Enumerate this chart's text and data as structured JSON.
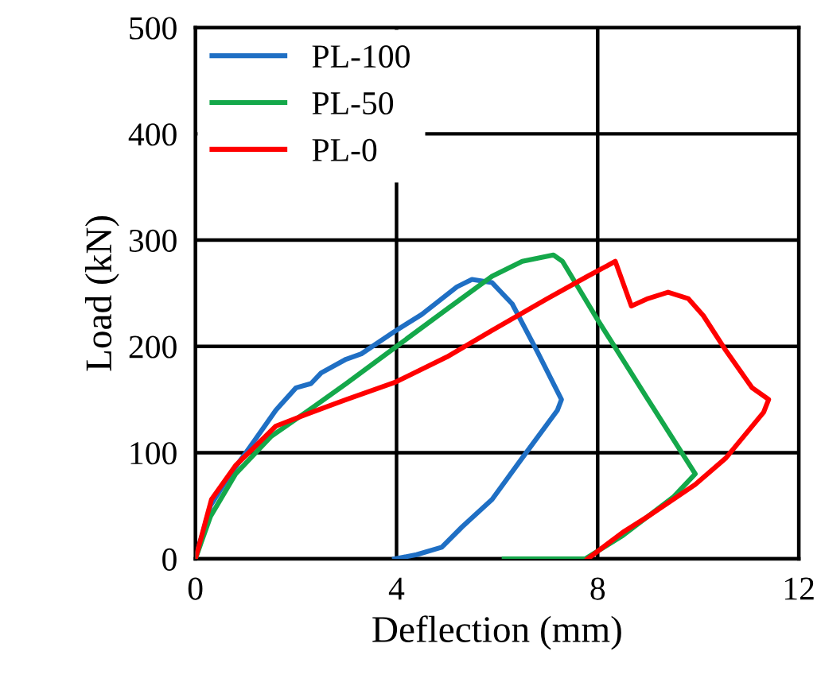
{
  "chart_data": {
    "type": "line",
    "xlabel": "Deflection (mm)",
    "ylabel": "Load (kN)",
    "xlim": [
      0,
      12
    ],
    "ylim": [
      0,
      500
    ],
    "xticks": [
      0,
      4,
      8,
      12
    ],
    "yticks": [
      0,
      100,
      200,
      300,
      400,
      500
    ],
    "grid": true,
    "legend": "top left",
    "marker": "none",
    "line_style": "solid",
    "series": [
      {
        "name": "PL-100",
        "color": "#1f6fc4",
        "x": [
          0,
          0.3,
          0.7,
          1.08,
          1.6,
          2.0,
          2.3,
          2.5,
          3.0,
          3.3,
          3.96,
          4.5,
          5.2,
          5.5,
          5.9,
          6.3,
          6.8,
          7.28,
          7.2,
          6.5,
          5.9,
          5.3,
          4.9,
          4.4,
          3.96
        ],
        "values": [
          0,
          50,
          80,
          105,
          140,
          161,
          165,
          175,
          188,
          193,
          214,
          230,
          256,
          263,
          260,
          240,
          195,
          150,
          140,
          95,
          56,
          30,
          11,
          4,
          0
        ]
      },
      {
        "name": "PL-50",
        "color": "#14a84a",
        "x": [
          0,
          0.3,
          0.8,
          1.5,
          2.2,
          3.0,
          4.0,
          5.0,
          5.9,
          6.5,
          7.12,
          7.3,
          8.0,
          9.0,
          9.94,
          9.5,
          8.5,
          7.75,
          6.14
        ],
        "values": [
          0,
          40,
          80,
          115,
          138,
          165,
          200,
          235,
          266,
          280,
          286,
          280,
          225,
          150,
          80,
          58,
          22,
          0,
          0
        ]
      },
      {
        "name": "PL-0",
        "color": "#ff0000",
        "x": [
          0,
          0.32,
          0.8,
          1.17,
          1.6,
          2.2,
          3.0,
          3.96,
          5.0,
          5.9,
          7.0,
          7.8,
          8.35,
          8.67,
          9.0,
          9.4,
          9.8,
          10.1,
          10.55,
          11.07,
          11.4,
          11.3,
          10.55,
          9.94,
          9.0,
          8.5,
          7.8
        ],
        "values": [
          0,
          56,
          88,
          105,
          125,
          136,
          150,
          166,
          190,
          215,
          245,
          266,
          280,
          238,
          245,
          251,
          245,
          229,
          196,
          161,
          150,
          138,
          95,
          70,
          40,
          25,
          0
        ]
      }
    ]
  }
}
